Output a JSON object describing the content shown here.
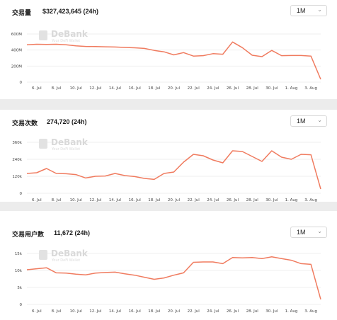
{
  "watermark": {
    "title": "DeBank",
    "subtitle": "Your DeFi Wallet"
  },
  "x_labels": [
    "6. Jul",
    "8. Jul",
    "10. Jul",
    "12. Jul",
    "14. Jul",
    "16. Jul",
    "18. Jul",
    "20. Jul",
    "22. Jul",
    "24. Jul",
    "26. Jul",
    "28. Jul",
    "30. Jul",
    "1. Aug",
    "3. Aug"
  ],
  "panels": [
    {
      "title": "交易量",
      "value": "$327,423,645 (24h)",
      "range": "1M",
      "colors": {
        "line": "#f07b5f"
      },
      "chart_data": {
        "type": "line",
        "title": "",
        "x": [
          "5. Jul",
          "6. Jul",
          "7. Jul",
          "8. Jul",
          "9. Jul",
          "10. Jul",
          "11. Jul",
          "12. Jul",
          "13. Jul",
          "14. Jul",
          "15. Jul",
          "16. Jul",
          "17. Jul",
          "18. Jul",
          "19. Jul",
          "20. Jul",
          "21. Jul",
          "22. Jul",
          "23. Jul",
          "24. Jul",
          "25. Jul",
          "26. Jul",
          "27. Jul",
          "28. Jul",
          "29. Jul",
          "30. Jul",
          "31. Jul",
          "1. Aug",
          "2. Aug",
          "3. Aug",
          "4. Aug"
        ],
        "y": [
          465,
          472,
          470,
          472,
          465,
          452,
          445,
          443,
          440,
          438,
          432,
          428,
          420,
          395,
          378,
          340,
          368,
          325,
          330,
          355,
          348,
          500,
          430,
          335,
          318,
          395,
          330,
          332,
          332,
          325,
          35
        ],
        "yticks": [
          "0",
          "200M",
          "400M",
          "600M"
        ],
        "ylim": [
          0,
          600
        ]
      }
    },
    {
      "title": "交易次数",
      "value": "274,720 (24h)",
      "range": "1M",
      "colors": {
        "line": "#f07b5f"
      },
      "chart_data": {
        "type": "line",
        "title": "",
        "x": [
          "5. Jul",
          "6. Jul",
          "7. Jul",
          "8. Jul",
          "9. Jul",
          "10. Jul",
          "11. Jul",
          "12. Jul",
          "13. Jul",
          "14. Jul",
          "15. Jul",
          "16. Jul",
          "17. Jul",
          "18. Jul",
          "19. Jul",
          "20. Jul",
          "21. Jul",
          "22. Jul",
          "23. Jul",
          "24. Jul",
          "25. Jul",
          "26. Jul",
          "27. Jul",
          "28. Jul",
          "29. Jul",
          "30. Jul",
          "31. Jul",
          "1. Aug",
          "2. Aug",
          "3. Aug",
          "4. Aug"
        ],
        "y": [
          140,
          145,
          175,
          140,
          138,
          132,
          108,
          120,
          122,
          140,
          125,
          118,
          105,
          98,
          140,
          150,
          220,
          275,
          265,
          235,
          215,
          300,
          295,
          260,
          225,
          300,
          255,
          240,
          275,
          272,
          30
        ],
        "yticks": [
          "0",
          "120k",
          "240k",
          "360k"
        ],
        "ylim": [
          0,
          360
        ]
      }
    },
    {
      "title": "交易用户数",
      "value": "11,672 (24h)",
      "range": "1M",
      "colors": {
        "line": "#f07b5f"
      },
      "chart_data": {
        "type": "line",
        "title": "",
        "x": [
          "5. Jul",
          "6. Jul",
          "7. Jul",
          "8. Jul",
          "9. Jul",
          "10. Jul",
          "11. Jul",
          "12. Jul",
          "13. Jul",
          "14. Jul",
          "15. Jul",
          "16. Jul",
          "17. Jul",
          "18. Jul",
          "19. Jul",
          "20. Jul",
          "21. Jul",
          "22. Jul",
          "23. Jul",
          "24. Jul",
          "25. Jul",
          "26. Jul",
          "27. Jul",
          "28. Jul",
          "29. Jul",
          "30. Jul",
          "31. Jul",
          "1. Aug",
          "2. Aug",
          "3. Aug",
          "4. Aug"
        ],
        "y": [
          10.2,
          10.5,
          10.8,
          9.3,
          9.2,
          8.9,
          8.7,
          9.2,
          9.4,
          9.5,
          9.0,
          8.6,
          8.0,
          7.4,
          7.8,
          8.6,
          9.3,
          12.4,
          12.5,
          12.5,
          12.0,
          13.8,
          13.7,
          13.8,
          13.5,
          14.0,
          13.5,
          13.0,
          12.0,
          11.8,
          1.5
        ],
        "yticks": [
          "0",
          "5k",
          "10k",
          "15k"
        ],
        "ylim": [
          0,
          15
        ]
      }
    }
  ]
}
